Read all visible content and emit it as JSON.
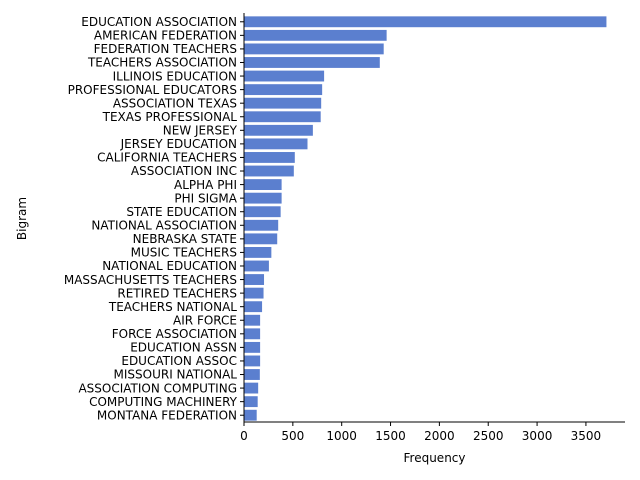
{
  "chart_data": {
    "type": "bar",
    "orientation": "horizontal",
    "xlabel": "Frequency",
    "ylabel": "Bigram",
    "xlim": [
      0,
      3900
    ],
    "xticks": [
      0,
      500,
      1000,
      1500,
      2000,
      2500,
      3000,
      3500
    ],
    "grid": false,
    "bar_color": "#5b7fcf",
    "categories": [
      "EDUCATION ASSOCIATION",
      "AMERICAN FEDERATION",
      "FEDERATION TEACHERS",
      "TEACHERS ASSOCIATION",
      "ILLINOIS EDUCATION",
      "PROFESSIONAL EDUCATORS",
      "ASSOCIATION TEXAS",
      "TEXAS PROFESSIONAL",
      "NEW JERSEY",
      "JERSEY EDUCATION",
      "CALIFORNIA TEACHERS",
      "ASSOCIATION INC",
      "ALPHA PHI",
      "PHI SIGMA",
      "STATE EDUCATION",
      "NATIONAL ASSOCIATION",
      "NEBRASKA STATE",
      "MUSIC TEACHERS",
      "NATIONAL EDUCATION",
      "MASSACHUSETTS TEACHERS",
      "RETIRED TEACHERS",
      "TEACHERS NATIONAL",
      "AIR FORCE",
      "FORCE ASSOCIATION",
      "EDUCATION ASSN",
      "EDUCATION ASSOC",
      "MISSOURI NATIONAL",
      "ASSOCIATION COMPUTING",
      "COMPUTING MACHINERY",
      "MONTANA FEDERATION"
    ],
    "values": [
      3710,
      1460,
      1430,
      1390,
      820,
      800,
      790,
      785,
      705,
      650,
      520,
      510,
      385,
      385,
      375,
      350,
      340,
      280,
      255,
      205,
      200,
      185,
      165,
      165,
      165,
      165,
      162,
      145,
      140,
      130
    ]
  }
}
